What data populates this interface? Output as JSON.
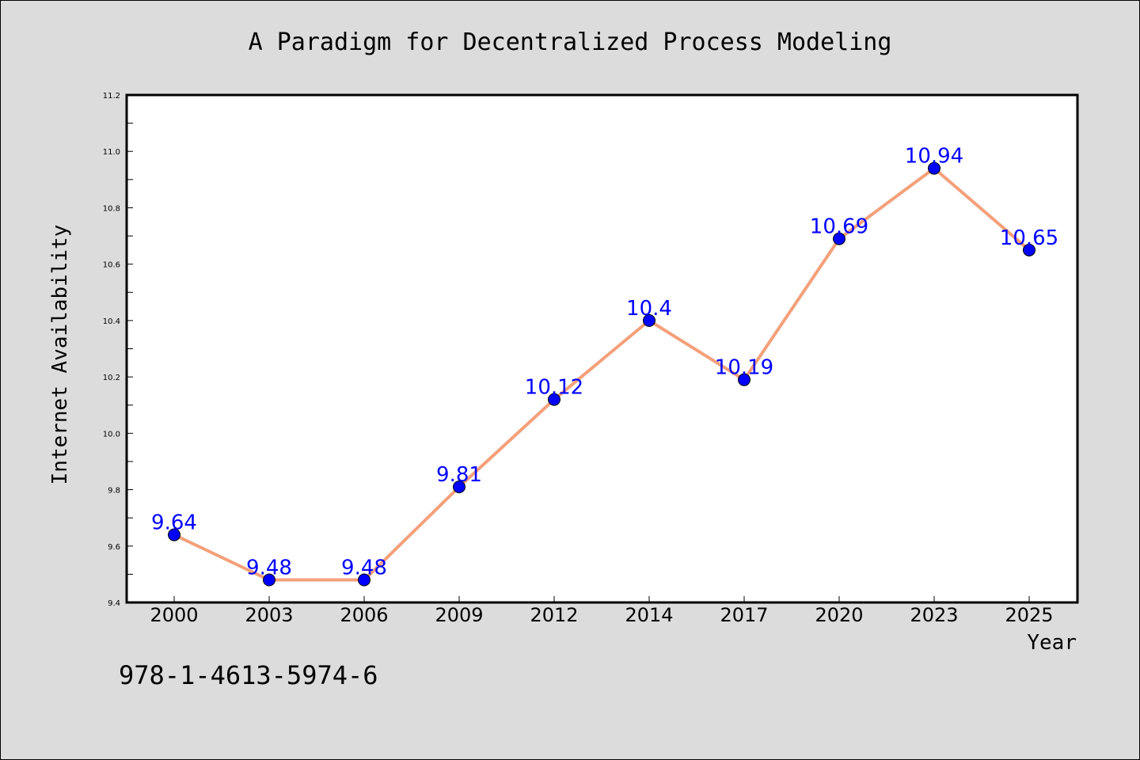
{
  "chart_data": {
    "type": "line",
    "title": "A Paradigm for Decentralized Process Modeling",
    "xlabel": "Year",
    "ylabel": "Internet Availability",
    "categories": [
      "2000",
      "2003",
      "2006",
      "2009",
      "2012",
      "2014",
      "2017",
      "2020",
      "2023",
      "2025"
    ],
    "series": [
      {
        "values": [
          9.64,
          9.48,
          9.48,
          9.81,
          10.12,
          10.4,
          10.19,
          10.69,
          10.94,
          10.65
        ],
        "line_color": "#f4a07a",
        "marker_color": "#0000ff"
      }
    ],
    "data_labels": [
      "9.64",
      "9.48",
      "9.48",
      "9.81",
      "10.12",
      "10.4",
      "10.19",
      "10.69",
      "10.94",
      "10.65"
    ],
    "data_label_color": "#0000ff",
    "ylim": [
      9.4,
      11.2
    ],
    "y_ticks": [
      "9.4",
      "9.6",
      "9.8",
      "10.0",
      "10.2",
      "10.4",
      "10.6",
      "10.8",
      "11.0",
      "11.2"
    ],
    "grid": false,
    "plot_background": "#ffffff",
    "figure_background": "#dcdcdc"
  },
  "footer": {
    "isbn": "978-1-4613-5974-6"
  }
}
